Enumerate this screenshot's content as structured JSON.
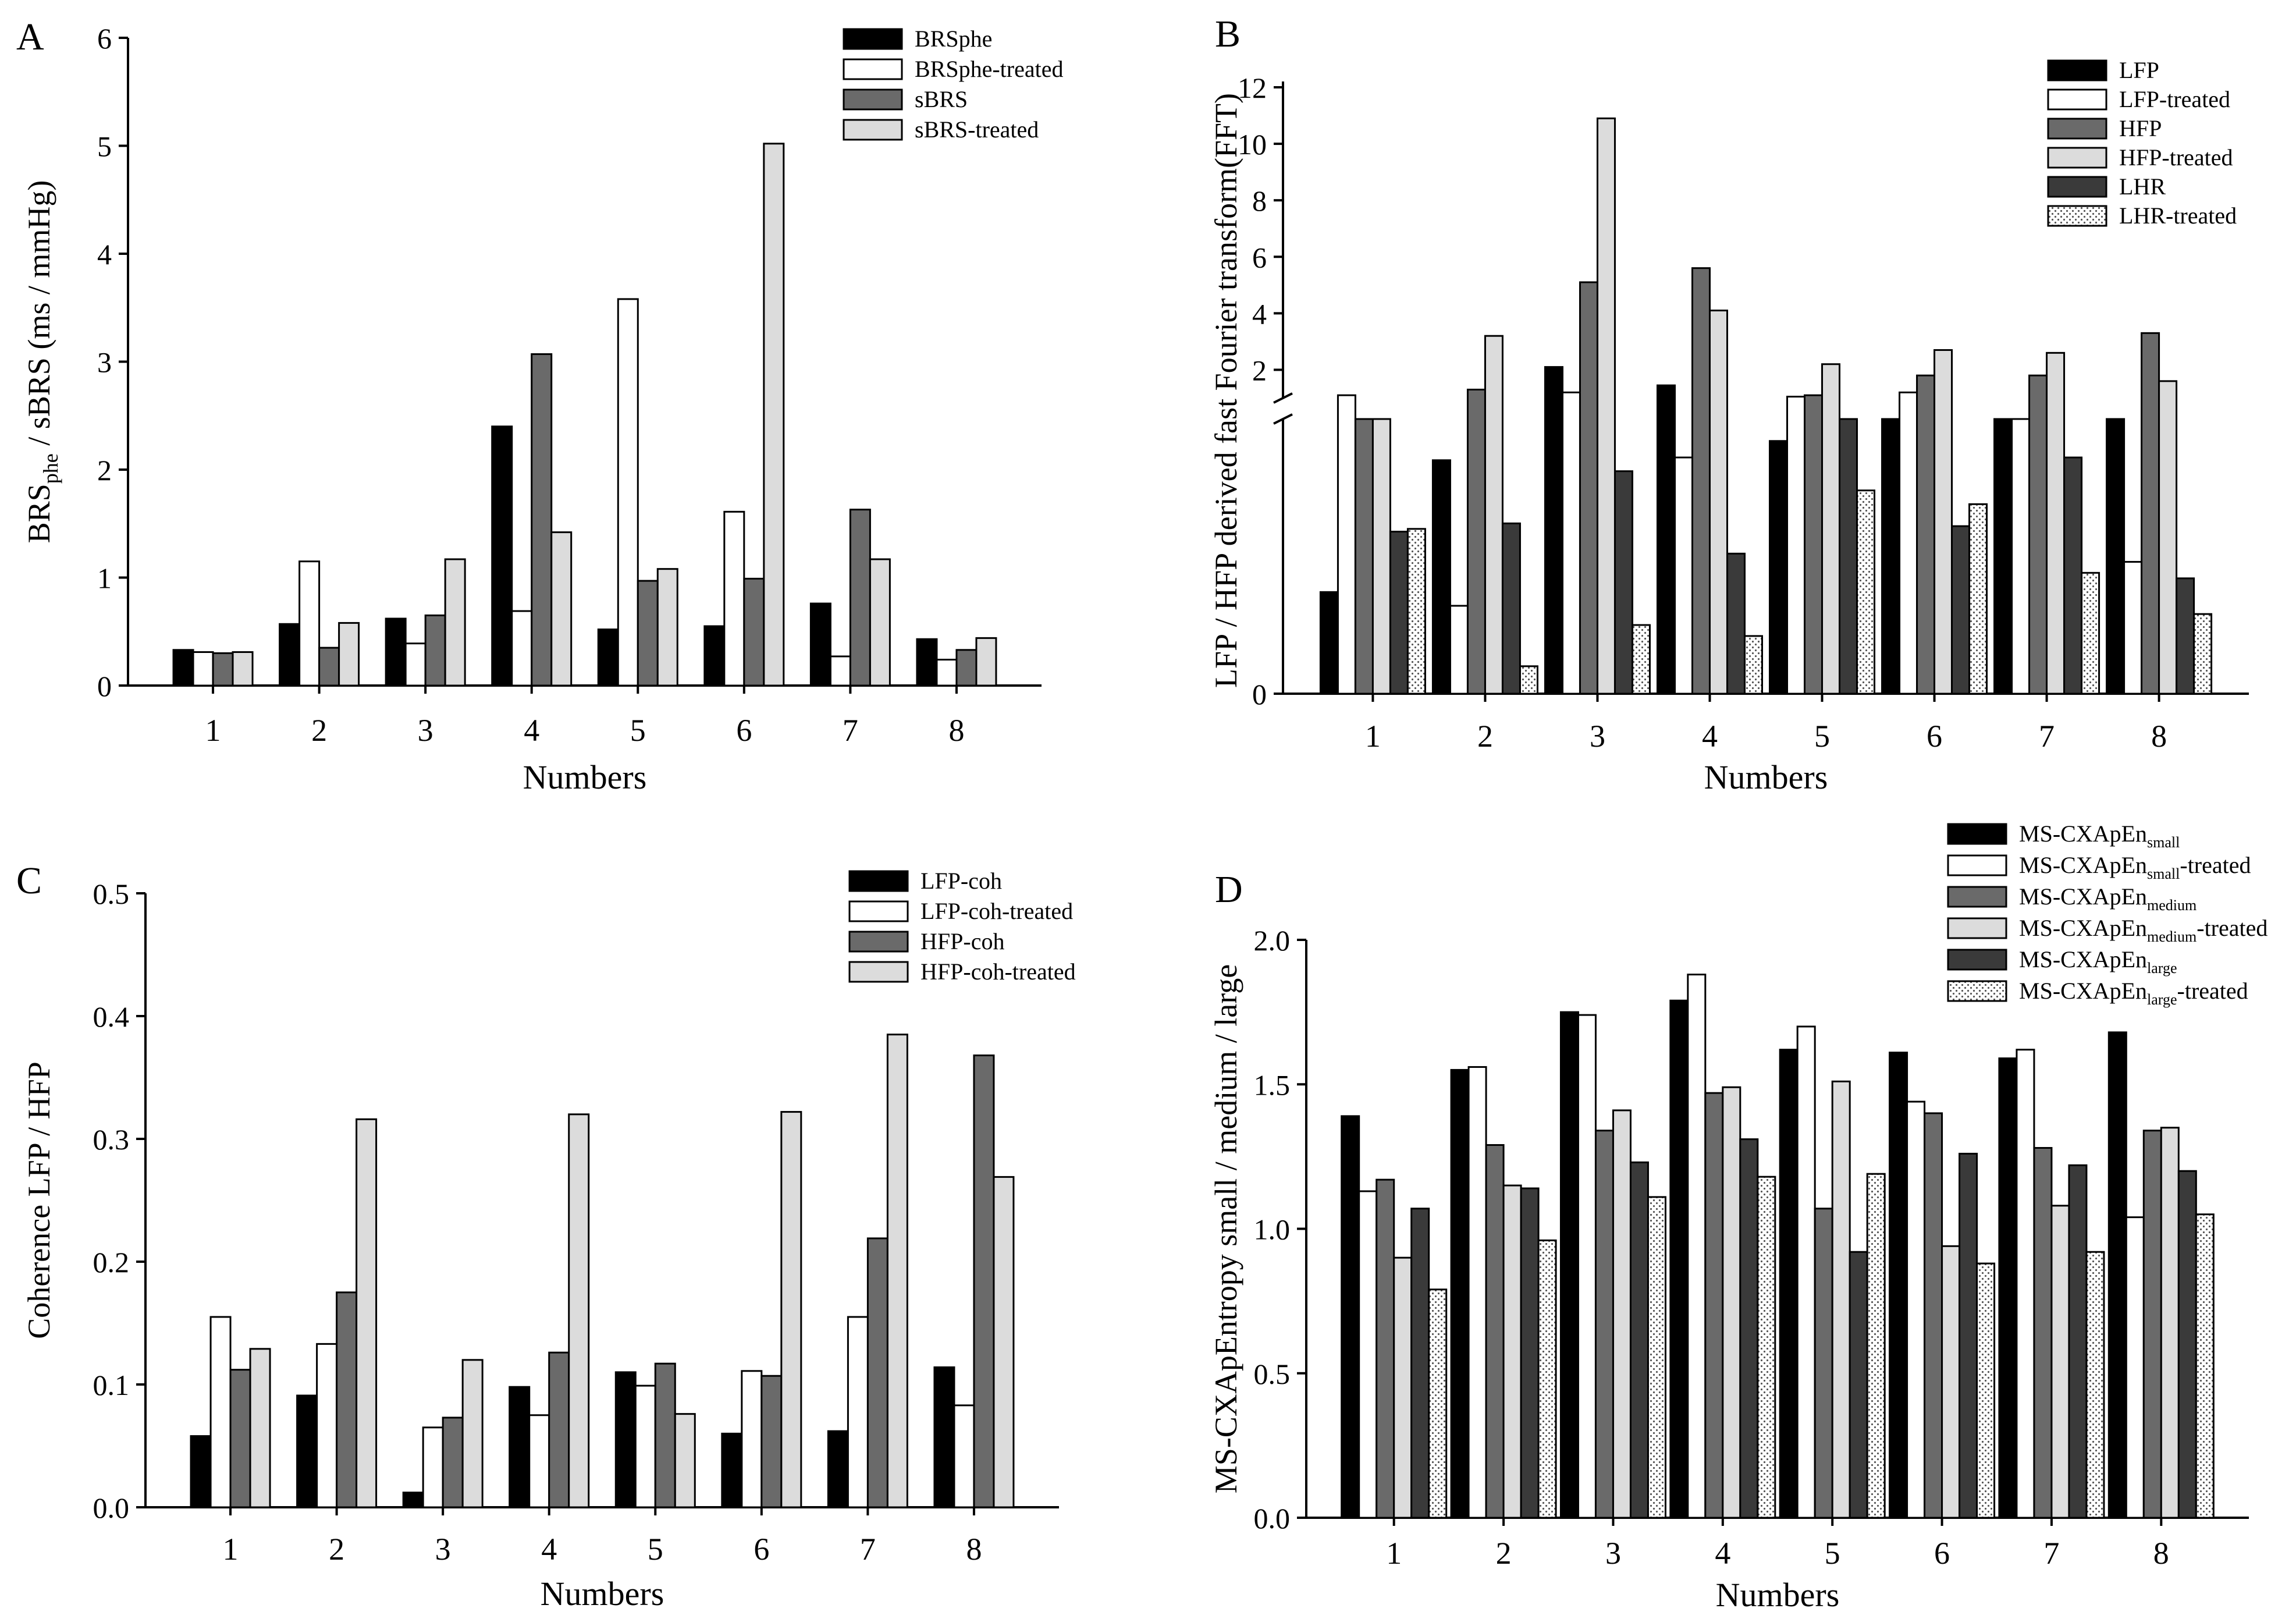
{
  "colors": {
    "black": "#000000",
    "white": "#ffffff",
    "darkgray": "#6a6a6a",
    "lightgray": "#dcdcdc",
    "verydark": "#3a3a3a",
    "dotted": "pattern"
  },
  "chart_data": [
    {
      "id": "A",
      "type": "bar",
      "panel_label": "A",
      "title": "",
      "ylabel_main": "BRS",
      "ylabel_sub": "phe",
      "ylabel_rest": " / sBRS (ms / mmHg)",
      "xlabel": "Numbers",
      "categories": [
        "1",
        "2",
        "3",
        "4",
        "5",
        "6",
        "7",
        "8"
      ],
      "ylim": [
        0,
        6
      ],
      "yticks": [
        "0",
        "1",
        "2",
        "3",
        "4",
        "5",
        "6"
      ],
      "legend_position": "top-right",
      "series": [
        {
          "name": "BRSphe",
          "fill": "black",
          "values": [
            0.33,
            0.57,
            0.62,
            2.4,
            0.52,
            0.55,
            0.76,
            0.43
          ]
        },
        {
          "name": "BRSphe-treated",
          "fill": "white",
          "values": [
            0.31,
            1.15,
            0.39,
            0.69,
            3.58,
            1.61,
            0.27,
            0.24
          ]
        },
        {
          "name": "sBRS",
          "fill": "darkgray",
          "values": [
            0.3,
            0.35,
            0.65,
            3.07,
            0.97,
            0.99,
            1.63,
            0.33
          ]
        },
        {
          "name": "sBRS-treated",
          "fill": "lightgray",
          "values": [
            0.31,
            0.58,
            1.17,
            1.42,
            1.08,
            5.02,
            1.17,
            0.44
          ]
        }
      ]
    },
    {
      "id": "B",
      "type": "bar",
      "panel_label": "B",
      "title": "",
      "ylabel": "LFP / HFP derived fast Fourier transform(FFT)",
      "xlabel": "Numbers",
      "categories": [
        "1",
        "2",
        "3",
        "4",
        "5",
        "6",
        "7",
        "8"
      ],
      "ylim": [
        0,
        12
      ],
      "broken_axis": {
        "lower": [
          0,
          1
        ],
        "upper": [
          1,
          12
        ]
      },
      "yticks_lower": [
        "0"
      ],
      "yticks_upper": [
        "2",
        "4",
        "6",
        "8",
        "10",
        "12"
      ],
      "legend_position": "top-right",
      "series": [
        {
          "name": "LFP",
          "fill": "black",
          "values": [
            0.37,
            0.85,
            2.1,
            1.45,
            0.92,
            1.0,
            1.0,
            1.0
          ]
        },
        {
          "name": "LFP-treated",
          "fill": "white",
          "values": [
            1.1,
            0.32,
            1.2,
            0.86,
            1.05,
            1.2,
            1.0,
            0.48
          ]
        },
        {
          "name": "HFP",
          "fill": "darkgray",
          "values": [
            1.0,
            1.3,
            5.1,
            5.6,
            1.1,
            1.8,
            1.8,
            3.3
          ]
        },
        {
          "name": "HFP-treated",
          "fill": "lightgray",
          "values": [
            1.0,
            3.2,
            10.9,
            4.1,
            2.2,
            2.7,
            2.6,
            1.6
          ]
        },
        {
          "name": "LHR",
          "fill": "verydark",
          "values": [
            0.59,
            0.62,
            0.81,
            0.51,
            1.0,
            0.61,
            0.86,
            0.42
          ]
        },
        {
          "name": "LHR-treated",
          "fill": "dotted",
          "values": [
            0.6,
            0.1,
            0.25,
            0.21,
            0.74,
            0.69,
            0.44,
            0.29
          ]
        }
      ]
    },
    {
      "id": "C",
      "type": "bar",
      "panel_label": "C",
      "title": "",
      "ylabel": "Coherence LFP / HFP",
      "xlabel": "Numbers",
      "categories": [
        "1",
        "2",
        "3",
        "4",
        "5",
        "6",
        "7",
        "8"
      ],
      "ylim": [
        0,
        0.5
      ],
      "yticks": [
        "0.0",
        "0.1",
        "0.2",
        "0.3",
        "0.4",
        "0.5"
      ],
      "legend_position": "top-right",
      "series": [
        {
          "name": "LFP-coh",
          "fill": "black",
          "values": [
            0.058,
            0.091,
            0.012,
            0.098,
            0.11,
            0.06,
            0.062,
            0.114
          ]
        },
        {
          "name": "LFP-coh-treated",
          "fill": "white",
          "values": [
            0.155,
            0.133,
            0.065,
            0.075,
            0.099,
            0.111,
            0.155,
            0.083
          ]
        },
        {
          "name": "HFP-coh",
          "fill": "darkgray",
          "values": [
            0.112,
            0.175,
            0.073,
            0.126,
            0.117,
            0.107,
            0.219,
            0.368
          ]
        },
        {
          "name": "HFP-coh-treated",
          "fill": "lightgray",
          "values": [
            0.129,
            0.316,
            0.12,
            0.32,
            0.076,
            0.322,
            0.385,
            0.269
          ]
        }
      ]
    },
    {
      "id": "D",
      "type": "bar",
      "panel_label": "D",
      "title": "",
      "ylabel": "MS-CXApEntropy small / medium / large",
      "xlabel": "Numbers",
      "categories": [
        "1",
        "2",
        "3",
        "4",
        "5",
        "6",
        "7",
        "8"
      ],
      "ylim": [
        0,
        2.0
      ],
      "yticks": [
        "0.0",
        "0.5",
        "1.0",
        "1.5",
        "2.0"
      ],
      "legend_position": "top-right",
      "series": [
        {
          "name": "MS-CXApEn",
          "sub": "small",
          "suffix": "",
          "fill": "black",
          "values": [
            1.39,
            1.55,
            1.75,
            1.79,
            1.62,
            1.61,
            1.59,
            1.68
          ]
        },
        {
          "name": "MS-CXApEn",
          "sub": "small",
          "suffix": "-treated",
          "fill": "white",
          "values": [
            1.13,
            1.56,
            1.74,
            1.88,
            1.7,
            1.44,
            1.62,
            1.04
          ]
        },
        {
          "name": "MS-CXApEn",
          "sub": "medium",
          "suffix": "",
          "fill": "darkgray",
          "values": [
            1.17,
            1.29,
            1.34,
            1.47,
            1.07,
            1.4,
            1.28,
            1.34
          ]
        },
        {
          "name": "MS-CXApEn",
          "sub": "medium",
          "suffix": "-treated",
          "fill": "lightgray",
          "values": [
            0.9,
            1.15,
            1.41,
            1.49,
            1.51,
            0.94,
            1.08,
            1.35
          ]
        },
        {
          "name": "MS-CXApEn",
          "sub": "large",
          "suffix": "",
          "fill": "verydark",
          "values": [
            1.07,
            1.14,
            1.23,
            1.31,
            0.92,
            1.26,
            1.22,
            1.2
          ]
        },
        {
          "name": "MS-CXApEn",
          "sub": "large",
          "suffix": "-treated",
          "fill": "dotted",
          "values": [
            0.79,
            0.96,
            1.11,
            1.18,
            1.19,
            0.88,
            0.92,
            1.05
          ]
        }
      ]
    }
  ]
}
